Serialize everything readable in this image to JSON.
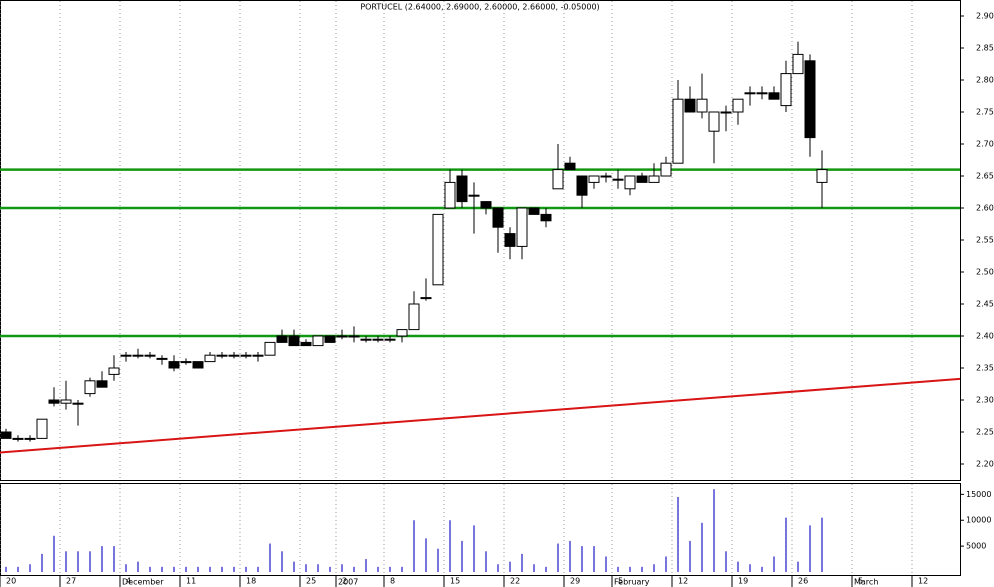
{
  "chart_data": {
    "type": "candlestick",
    "title": "PORTUCEL (2.64000, 2.69000, 2.60000, 2.66000, -0.05000)",
    "categories": [
      "20",
      null,
      null,
      null,
      null,
      "27",
      null,
      null,
      null,
      null,
      "4",
      null,
      null,
      null,
      null,
      "11",
      null,
      null,
      null,
      null,
      "18",
      null,
      null,
      null,
      null,
      "25",
      null,
      null,
      "2",
      null,
      null,
      null,
      "8",
      null,
      null,
      null,
      null,
      "15",
      null,
      null,
      null,
      null,
      "22",
      null,
      null,
      null,
      null,
      "29",
      null,
      null,
      null,
      "5",
      null,
      null,
      null,
      null,
      "12",
      null,
      null,
      null,
      null,
      "19",
      null,
      null,
      null,
      null,
      "26",
      null,
      null,
      null,
      null,
      "5",
      null,
      null,
      null,
      null,
      "12",
      null,
      null,
      null
    ],
    "months": [
      null,
      null,
      null,
      null,
      null,
      null,
      null,
      null,
      null,
      null,
      "December",
      null,
      null,
      null,
      null,
      null,
      null,
      null,
      null,
      null,
      null,
      null,
      null,
      null,
      null,
      null,
      null,
      null,
      "2007",
      null,
      null,
      null,
      null,
      null,
      null,
      null,
      null,
      null,
      null,
      null,
      null,
      null,
      null,
      null,
      null,
      null,
      null,
      null,
      null,
      null,
      null,
      "February",
      null,
      null,
      null,
      null,
      null,
      null,
      null,
      null,
      null,
      null,
      null,
      null,
      null,
      null,
      null,
      null,
      null,
      null,
      null,
      "March",
      null,
      null,
      null,
      null,
      null,
      null,
      null,
      null
    ],
    "open": [
      2.25,
      2.24,
      2.24,
      2.24,
      2.3,
      2.295,
      2.295,
      2.31,
      2.33,
      2.34,
      2.37,
      2.37,
      2.37,
      2.365,
      2.36,
      2.36,
      2.36,
      2.36,
      2.37,
      2.37,
      2.37,
      2.37,
      2.37,
      2.4,
      2.4,
      2.39,
      2.385,
      2.4,
      2.4,
      2.4,
      2.395,
      2.395,
      2.395,
      2.4,
      2.41,
      2.46,
      2.48,
      2.6,
      2.65,
      2.62,
      2.61,
      2.6,
      2.56,
      2.54,
      2.6,
      2.59,
      2.63,
      2.67,
      2.65,
      2.64,
      2.65,
      2.645,
      2.63,
      2.65,
      2.64,
      2.65,
      2.67,
      2.77,
      2.75,
      2.72,
      2.75,
      2.75,
      2.78,
      2.78,
      2.78,
      2.76,
      2.81,
      2.83,
      2.64,
      null,
      null,
      null,
      null,
      null,
      null,
      null,
      null,
      null,
      null,
      null
    ],
    "high": [
      2.255,
      2.245,
      2.245,
      2.27,
      2.32,
      2.33,
      2.3,
      2.335,
      2.345,
      2.37,
      2.375,
      2.38,
      2.375,
      2.37,
      2.37,
      2.365,
      2.36,
      2.375,
      2.375,
      2.375,
      2.375,
      2.375,
      2.39,
      2.41,
      2.41,
      2.395,
      2.4,
      2.4,
      2.41,
      2.415,
      2.4,
      2.4,
      2.4,
      2.41,
      2.47,
      2.49,
      2.59,
      2.66,
      2.66,
      2.64,
      2.61,
      2.6,
      2.57,
      2.6,
      2.6,
      2.6,
      2.7,
      2.68,
      2.65,
      2.65,
      2.655,
      2.66,
      2.65,
      2.655,
      2.67,
      2.68,
      2.8,
      2.79,
      2.81,
      2.75,
      2.76,
      2.77,
      2.79,
      2.79,
      2.79,
      2.83,
      2.86,
      2.84,
      2.69,
      null,
      null,
      null,
      null,
      null,
      null,
      null,
      null,
      null,
      null,
      null
    ],
    "low": [
      2.24,
      2.235,
      2.235,
      2.24,
      2.29,
      2.285,
      2.26,
      2.305,
      2.32,
      2.33,
      2.36,
      2.365,
      2.365,
      2.355,
      2.345,
      2.355,
      2.35,
      2.36,
      2.365,
      2.365,
      2.365,
      2.36,
      2.37,
      2.39,
      2.385,
      2.385,
      2.385,
      2.39,
      2.395,
      2.39,
      2.39,
      2.39,
      2.39,
      2.39,
      2.41,
      2.455,
      2.48,
      2.6,
      2.6,
      2.56,
      2.59,
      2.53,
      2.52,
      2.52,
      2.59,
      2.57,
      2.63,
      2.66,
      2.6,
      2.63,
      2.64,
      2.63,
      2.62,
      2.64,
      2.64,
      2.65,
      2.67,
      2.75,
      2.74,
      2.67,
      2.72,
      2.73,
      2.76,
      2.77,
      2.77,
      2.75,
      2.81,
      2.68,
      2.6,
      null,
      null,
      null,
      null,
      null,
      null,
      null,
      null,
      null,
      null,
      null
    ],
    "close": [
      2.24,
      2.24,
      2.24,
      2.27,
      2.295,
      2.3,
      2.295,
      2.33,
      2.32,
      2.35,
      2.37,
      2.37,
      2.37,
      2.365,
      2.35,
      2.36,
      2.35,
      2.37,
      2.37,
      2.37,
      2.37,
      2.37,
      2.39,
      2.39,
      2.385,
      2.385,
      2.4,
      2.39,
      2.4,
      2.4,
      2.395,
      2.395,
      2.395,
      2.41,
      2.45,
      2.46,
      2.59,
      2.64,
      2.61,
      2.62,
      2.6,
      2.57,
      2.54,
      2.6,
      2.59,
      2.58,
      2.66,
      2.66,
      2.62,
      2.65,
      2.65,
      2.645,
      2.65,
      2.64,
      2.65,
      2.67,
      2.77,
      2.75,
      2.77,
      2.75,
      2.75,
      2.77,
      2.78,
      2.78,
      2.77,
      2.81,
      2.84,
      2.71,
      2.66,
      null,
      null,
      null,
      null,
      null,
      null,
      null,
      null,
      null,
      null,
      null
    ],
    "volume": [
      1000,
      1000,
      1500,
      3500,
      7000,
      4000,
      4000,
      4000,
      5000,
      5000,
      1500,
      2000,
      1000,
      1000,
      1000,
      1000,
      1000,
      1000,
      1000,
      1000,
      1000,
      1000,
      5500,
      4000,
      2000,
      1500,
      1500,
      1000,
      1500,
      1000,
      2500,
      1000,
      1000,
      1000,
      10000,
      6500,
      4500,
      10000,
      6000,
      9000,
      4000,
      1500,
      2000,
      3500,
      1500,
      1000,
      5500,
      6000,
      5000,
      5000,
      3000,
      1000,
      1000,
      1000,
      1500,
      3000,
      14500,
      6000,
      9500,
      16000,
      4000,
      2000,
      1500,
      1000,
      3000,
      10500,
      2000,
      9000,
      10500,
      null,
      null,
      null,
      null,
      null,
      null,
      null,
      null,
      null,
      null,
      null
    ],
    "up_color": "#ffffff",
    "down_color": "#000000",
    "volume_color": "#1a1ac8",
    "ylim": [
      2.175,
      2.925
    ],
    "yticks": [
      {
        "value": 2.2,
        "label": "2.20"
      },
      {
        "value": 2.25,
        "label": "2.25"
      },
      {
        "value": 2.3,
        "label": "2.30"
      },
      {
        "value": 2.35,
        "label": "2.35"
      },
      {
        "value": 2.4,
        "label": "2.40"
      },
      {
        "value": 2.45,
        "label": "2.45"
      },
      {
        "value": 2.5,
        "label": "2.50"
      },
      {
        "value": 2.55,
        "label": "2.55"
      },
      {
        "value": 2.6,
        "label": "2.60"
      },
      {
        "value": 2.65,
        "label": "2.65"
      },
      {
        "value": 2.7,
        "label": "2.70"
      },
      {
        "value": 2.75,
        "label": "2.75"
      },
      {
        "value": 2.8,
        "label": "2.80"
      },
      {
        "value": 2.85,
        "label": "2.85"
      },
      {
        "value": 2.9,
        "label": "2.90"
      }
    ],
    "vol_ylim": [
      0,
      17000
    ],
    "vol_yticks": [
      5000,
      10000,
      15000
    ],
    "hlines": [
      {
        "value": 2.66,
        "color": "#129812"
      },
      {
        "value": 2.6,
        "color": "#129812"
      },
      {
        "value": 2.4,
        "color": "#129812"
      }
    ],
    "trendline": {
      "start": 2.218,
      "end": 2.333,
      "color": "#d81414"
    },
    "grid": true
  }
}
